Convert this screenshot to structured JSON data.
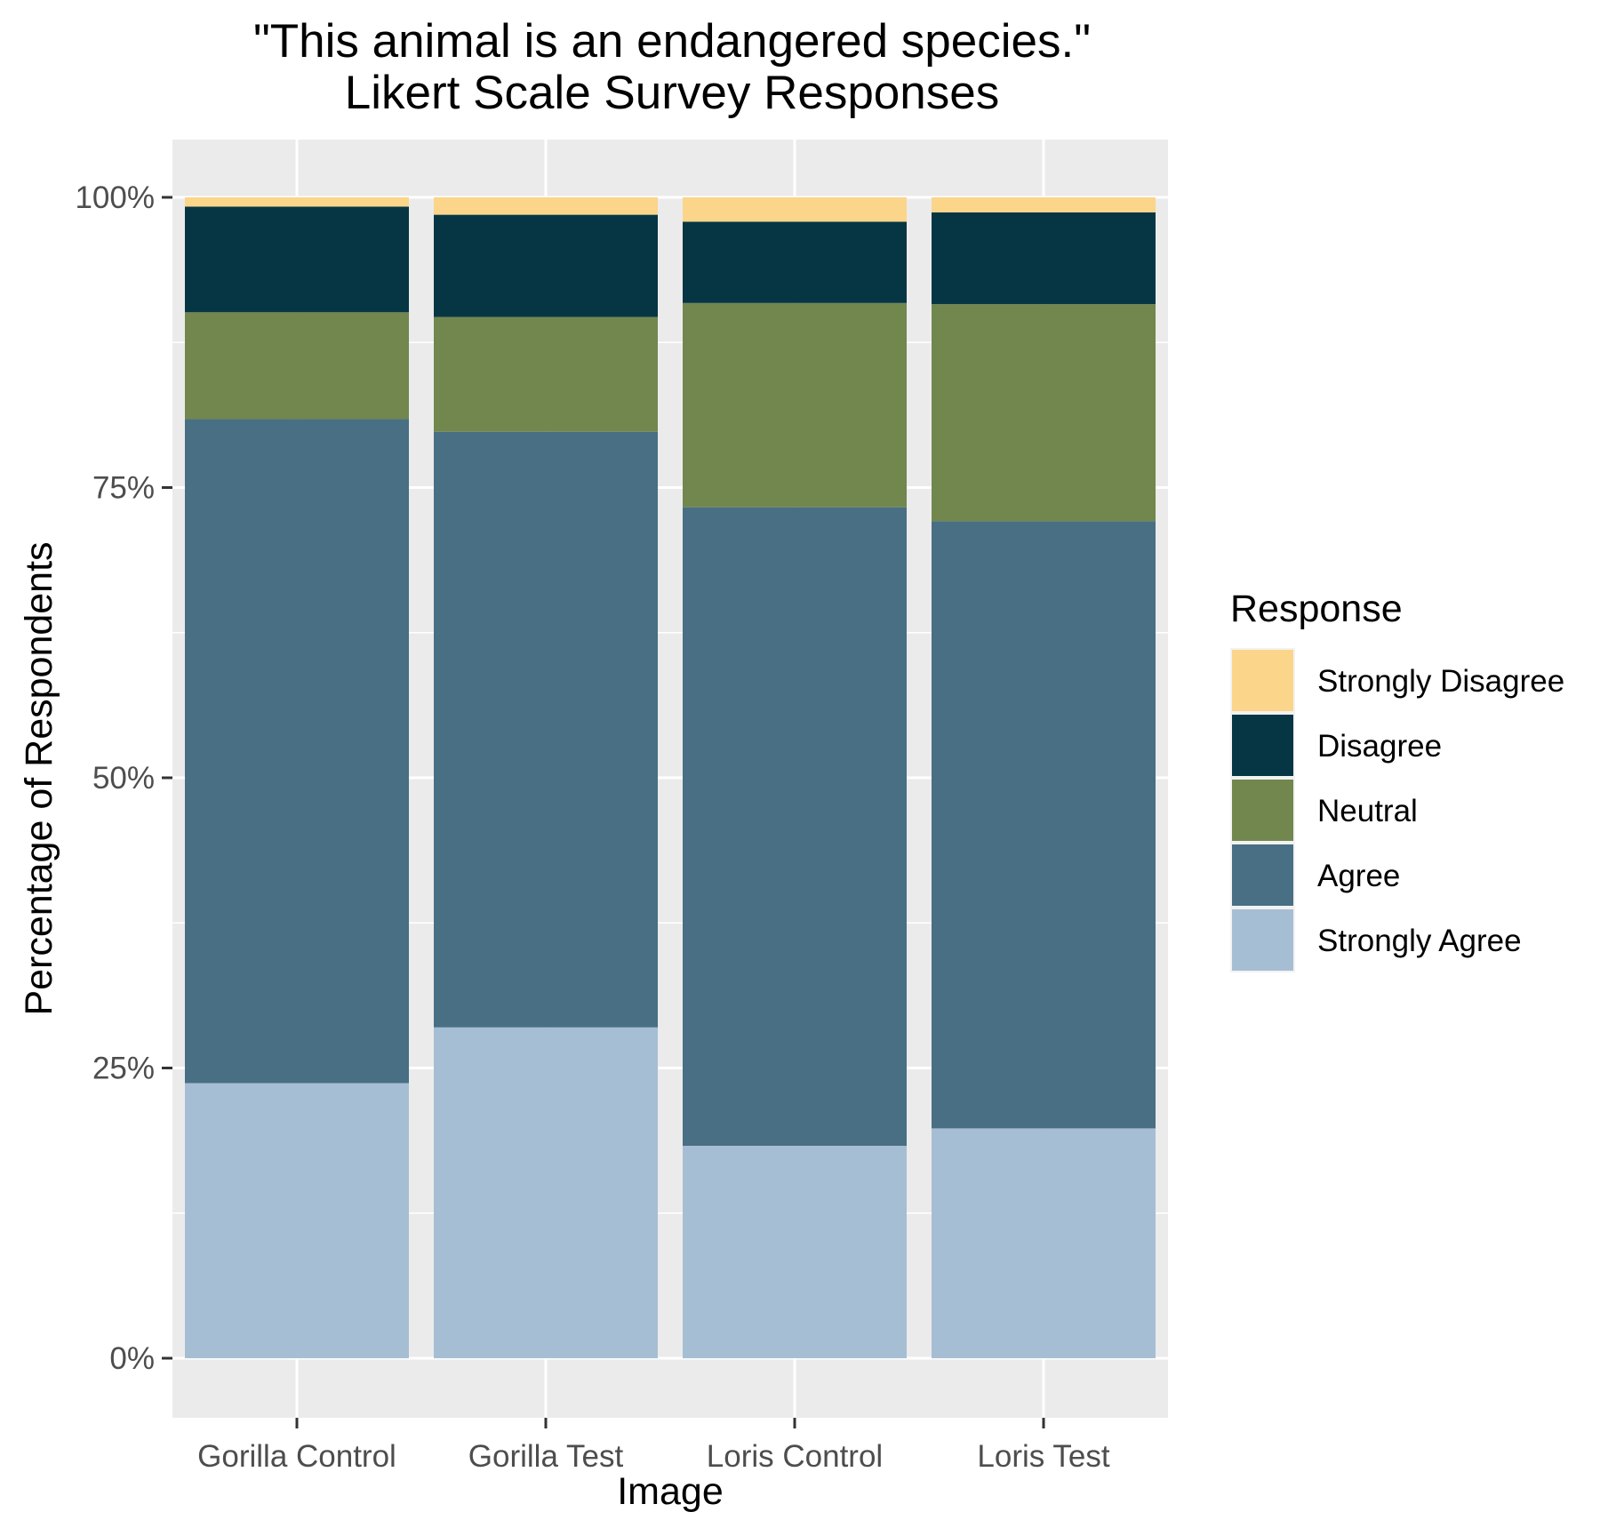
{
  "chart_data": {
    "type": "bar",
    "stacked": true,
    "title_line1": "\"This animal is an endangered species.\"",
    "title_line2": "Likert Scale Survey Responses",
    "xlabel": "Image",
    "ylabel": "Percentage of Respondents",
    "ylim": [
      0,
      1.05
    ],
    "yticks": [
      {
        "value": 0,
        "label": "0%"
      },
      {
        "value": 0.25,
        "label": "25%"
      },
      {
        "value": 0.5,
        "label": "50%"
      },
      {
        "value": 0.75,
        "label": "75%"
      },
      {
        "value": 1,
        "label": "100%"
      }
    ],
    "categories": [
      "Gorilla Control",
      "Gorilla Test",
      "Loris Control",
      "Loris Test"
    ],
    "legend_title": "Response",
    "legend_position": "right",
    "grid": true,
    "series": [
      {
        "name": "Strongly Agree",
        "color": "#a6bed4",
        "values": [
          0.237,
          0.285,
          0.183,
          0.198
        ]
      },
      {
        "name": "Agree",
        "color": "#486f84",
        "values": [
          0.572,
          0.513,
          0.55,
          0.523
        ]
      },
      {
        "name": "Neutral",
        "color": "#71874e",
        "values": [
          0.092,
          0.099,
          0.176,
          0.187
        ]
      },
      {
        "name": "Disagree",
        "color": "#063644",
        "values": [
          0.091,
          0.088,
          0.07,
          0.079
        ]
      },
      {
        "name": "Strongly Disagree",
        "color": "#fbd58a",
        "values": [
          0.008,
          0.015,
          0.021,
          0.013
        ]
      }
    ],
    "legend_order": [
      "Strongly Disagree",
      "Disagree",
      "Neutral",
      "Agree",
      "Strongly Agree"
    ],
    "panel_color": "#ebebeb",
    "grid_color": "#ffffff"
  }
}
